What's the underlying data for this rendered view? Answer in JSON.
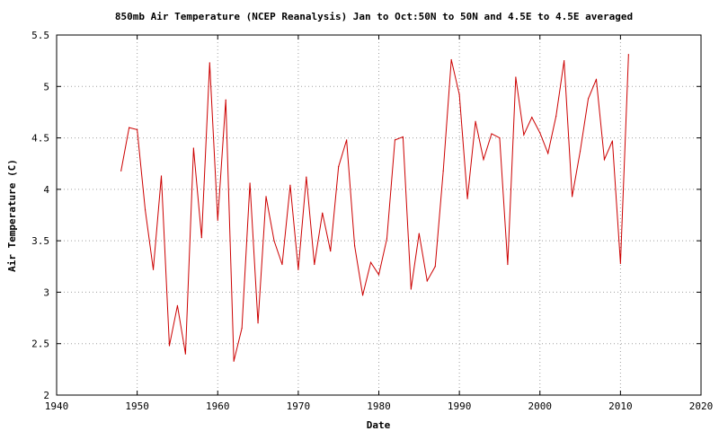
{
  "chart_data": {
    "type": "line",
    "title": "850mb Air Temperature (NCEP Reanalysis) Jan to Oct:50N to 50N and 4.5E to 4.5E averaged",
    "xlabel": "Date",
    "ylabel": "Air Temperature (C)",
    "xlim": [
      1940,
      2020
    ],
    "ylim": [
      2,
      5.5
    ],
    "xticks": [
      1940,
      1950,
      1960,
      1970,
      1980,
      1990,
      2000,
      2010,
      2020
    ],
    "yticks": [
      2,
      2.5,
      3,
      3.5,
      4,
      4.5,
      5,
      5.5
    ],
    "ytick_labels": [
      "2",
      "2.5",
      "3",
      "3.5",
      "4",
      "4.5",
      "5",
      "5.5"
    ],
    "grid": true,
    "legend": "none",
    "line_color": "#cc0000",
    "series": [
      {
        "x": [
          1948,
          1949,
          1950,
          1951,
          1952,
          1953,
          1954,
          1955,
          1956,
          1957,
          1958,
          1959,
          1960,
          1961,
          1962,
          1963,
          1964,
          1965,
          1966,
          1967,
          1968,
          1969,
          1970,
          1971,
          1972,
          1973,
          1974,
          1975,
          1976,
          1977,
          1978,
          1979,
          1980,
          1981,
          1982,
          1983,
          1984,
          1985,
          1986,
          1987,
          1988,
          1989,
          1990,
          1991,
          1992,
          1993,
          1994,
          1995,
          1996,
          1997,
          1998,
          1999,
          2000,
          2001,
          2002,
          2003,
          2004,
          2005,
          2006,
          2007,
          2008,
          2009,
          2010,
          2011
        ],
        "values": [
          4.18,
          4.6,
          4.58,
          3.8,
          3.22,
          4.13,
          2.48,
          2.87,
          2.4,
          4.4,
          3.53,
          5.23,
          3.7,
          4.87,
          2.33,
          2.65,
          4.06,
          2.7,
          3.93,
          3.5,
          3.27,
          4.04,
          3.22,
          4.12,
          3.27,
          3.77,
          3.4,
          4.22,
          4.48,
          3.45,
          2.97,
          3.29,
          3.17,
          3.52,
          4.48,
          4.51,
          3.03,
          3.57,
          3.11,
          3.25,
          4.18,
          5.26,
          4.92,
          3.91,
          4.66,
          4.29,
          4.54,
          4.5,
          3.27,
          5.09,
          4.53,
          4.7,
          4.55,
          4.35,
          4.71,
          5.25,
          3.93,
          4.37,
          4.88,
          5.07,
          4.29,
          4.47,
          3.28,
          5.31
        ]
      }
    ]
  }
}
